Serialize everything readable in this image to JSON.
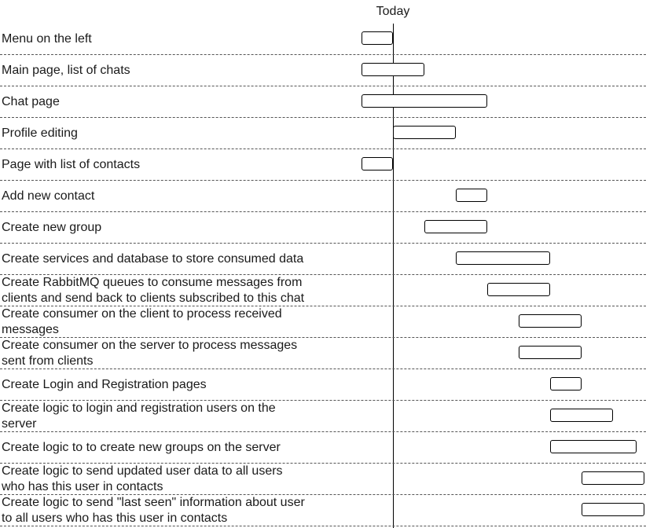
{
  "timeline": {
    "today_label": "Today",
    "start_unit": -1,
    "unit_count": 8
  },
  "tasks": [
    {
      "label": "Menu on the left",
      "start": -1,
      "end": 0
    },
    {
      "label": "Main page, list of chats",
      "start": -1,
      "end": 1
    },
    {
      "label": "Chat page",
      "start": -1,
      "end": 3
    },
    {
      "label": "Profile editing",
      "start": 0,
      "end": 2
    },
    {
      "label": "Page with list of contacts",
      "start": -1,
      "end": 0
    },
    {
      "label": "Add new contact",
      "start": 2,
      "end": 3
    },
    {
      "label": "Create new group",
      "start": 1,
      "end": 3
    },
    {
      "label": "Create services and database to store consumed data",
      "start": 2,
      "end": 5
    },
    {
      "label": "Create RabbitMQ queues to consume messages from\nclients and send back to clients subscribed to this chat",
      "start": 3,
      "end": 5
    },
    {
      "label": "Create consumer on the client to process received\nmessages",
      "start": 4,
      "end": 6
    },
    {
      "label": "Create consumer on the server to process messages\nsent from clients",
      "start": 4,
      "end": 6
    },
    {
      "label": "Create Login and Registration pages",
      "start": 5,
      "end": 6
    },
    {
      "label": "Create logic to login and registration users on the\nserver",
      "start": 5,
      "end": 7
    },
    {
      "label": "Create logic to to create new groups on the server",
      "start": 5,
      "end": 7.75
    },
    {
      "label": "Create logic to send updated user data to all users\nwho has this user in contacts",
      "start": 6,
      "end": 8
    },
    {
      "label": "Create logic to send \"last seen\" information about user\nto all users who has this user in contacts",
      "start": 6,
      "end": 8
    }
  ]
}
